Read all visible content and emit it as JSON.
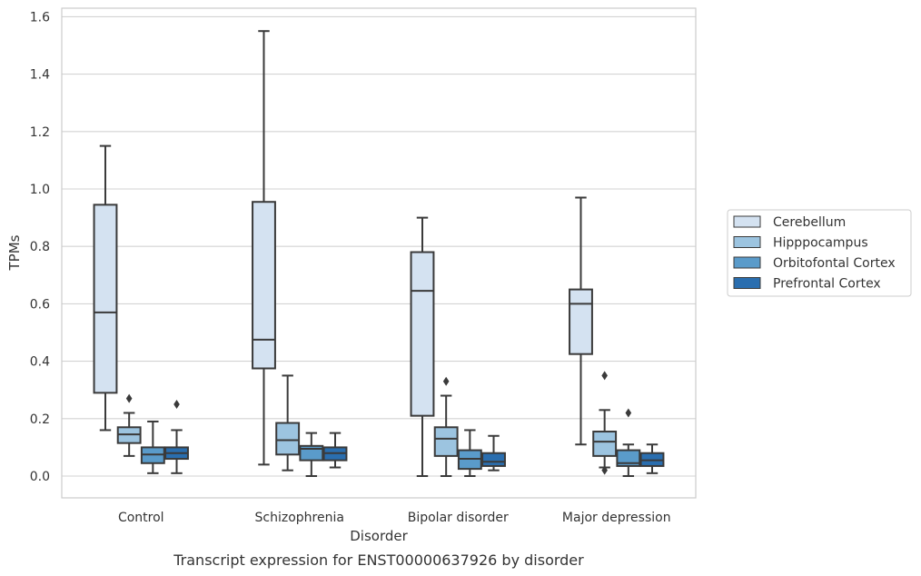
{
  "caption": "Transcript expression for ENST00000637926 by disorder",
  "chart_data": {
    "type": "box",
    "xlabel": "Disorder",
    "ylabel": "TPMs",
    "ylim": [
      -0.075,
      1.63
    ],
    "yticks": [
      "0.0",
      "0.2",
      "0.4",
      "0.6",
      "0.8",
      "1.0",
      "1.2",
      "1.4",
      "1.6"
    ],
    "ytick_values": [
      0.0,
      0.2,
      0.4,
      0.6,
      0.8,
      1.0,
      1.2,
      1.4,
      1.6
    ],
    "grid": true,
    "legend_position": "right-outside",
    "categories": [
      "Control",
      "Schizophrenia",
      "Bipolar disorder",
      "Major depression"
    ],
    "series": [
      {
        "name": "Cerebellum",
        "color": "#d4e2f1",
        "boxes": [
          {
            "whisker_low": 0.16,
            "q1": 0.29,
            "median": 0.57,
            "q3": 0.945,
            "whisker_high": 1.15,
            "outliers": []
          },
          {
            "whisker_low": 0.04,
            "q1": 0.375,
            "median": 0.475,
            "q3": 0.955,
            "whisker_high": 1.55,
            "outliers": []
          },
          {
            "whisker_low": 0.0,
            "q1": 0.21,
            "median": 0.645,
            "q3": 0.78,
            "whisker_high": 0.9,
            "outliers": []
          },
          {
            "whisker_low": 0.11,
            "q1": 0.425,
            "median": 0.6,
            "q3": 0.65,
            "whisker_high": 0.97,
            "outliers": []
          }
        ]
      },
      {
        "name": "Hipppocampus",
        "color": "#9cc4e0",
        "boxes": [
          {
            "whisker_low": 0.07,
            "q1": 0.115,
            "median": 0.145,
            "q3": 0.17,
            "whisker_high": 0.22,
            "outliers": [
              0.27
            ]
          },
          {
            "whisker_low": 0.02,
            "q1": 0.075,
            "median": 0.125,
            "q3": 0.185,
            "whisker_high": 0.35,
            "outliers": []
          },
          {
            "whisker_low": 0.0,
            "q1": 0.07,
            "median": 0.13,
            "q3": 0.17,
            "whisker_high": 0.28,
            "outliers": [
              0.33
            ]
          },
          {
            "whisker_low": 0.03,
            "q1": 0.07,
            "median": 0.12,
            "q3": 0.155,
            "whisker_high": 0.23,
            "outliers": [
              0.35,
              0.02
            ]
          }
        ]
      },
      {
        "name": "Orbitofontal Cortex",
        "color": "#5a9bca",
        "boxes": [
          {
            "whisker_low": 0.01,
            "q1": 0.045,
            "median": 0.075,
            "q3": 0.1,
            "whisker_high": 0.19,
            "outliers": []
          },
          {
            "whisker_low": 0.0,
            "q1": 0.055,
            "median": 0.095,
            "q3": 0.105,
            "whisker_high": 0.15,
            "outliers": []
          },
          {
            "whisker_low": 0.0,
            "q1": 0.025,
            "median": 0.06,
            "q3": 0.09,
            "whisker_high": 0.16,
            "outliers": []
          },
          {
            "whisker_low": 0.0,
            "q1": 0.035,
            "median": 0.045,
            "q3": 0.09,
            "whisker_high": 0.11,
            "outliers": [
              0.22
            ]
          }
        ]
      },
      {
        "name": "Prefrontal Cortex",
        "color": "#2a6eaf",
        "boxes": [
          {
            "whisker_low": 0.01,
            "q1": 0.06,
            "median": 0.08,
            "q3": 0.1,
            "whisker_high": 0.16,
            "outliers": [
              0.25
            ]
          },
          {
            "whisker_low": 0.03,
            "q1": 0.055,
            "median": 0.08,
            "q3": 0.1,
            "whisker_high": 0.15,
            "outliers": []
          },
          {
            "whisker_low": 0.02,
            "q1": 0.035,
            "median": 0.05,
            "q3": 0.08,
            "whisker_high": 0.14,
            "outliers": []
          },
          {
            "whisker_low": 0.01,
            "q1": 0.035,
            "median": 0.055,
            "q3": 0.08,
            "whisker_high": 0.11,
            "outliers": []
          }
        ]
      }
    ]
  }
}
